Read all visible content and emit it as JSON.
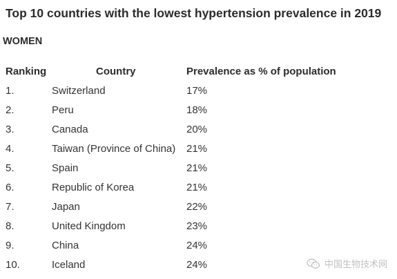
{
  "title": "Top 10 countries with the lowest hypertension prevalence in 2019",
  "subtitle": "WOMEN",
  "table": {
    "headers": [
      "Ranking",
      "Country",
      "Prevalence as % of population"
    ],
    "rows": [
      {
        "rank": "1.",
        "country": "Switzerland",
        "prevalence": "17%"
      },
      {
        "rank": "2.",
        "country": "Peru",
        "prevalence": "18%"
      },
      {
        "rank": "3.",
        "country": "Canada",
        "prevalence": "20%"
      },
      {
        "rank": "4.",
        "country": "Taiwan (Province of China)",
        "prevalence": "21%"
      },
      {
        "rank": "5.",
        "country": "Spain",
        "prevalence": "21%"
      },
      {
        "rank": "6.",
        "country": "Republic of Korea",
        "prevalence": "21%"
      },
      {
        "rank": "7.",
        "country": "Japan",
        "prevalence": "22%"
      },
      {
        "rank": "8.",
        "country": "United Kingdom",
        "prevalence": "23%"
      },
      {
        "rank": "9.",
        "country": "China",
        "prevalence": "24%"
      },
      {
        "rank": "10.",
        "country": "Iceland",
        "prevalence": "24%"
      }
    ]
  },
  "watermark": {
    "text": "中国生物技术网",
    "icon": "wechat-icon"
  }
}
